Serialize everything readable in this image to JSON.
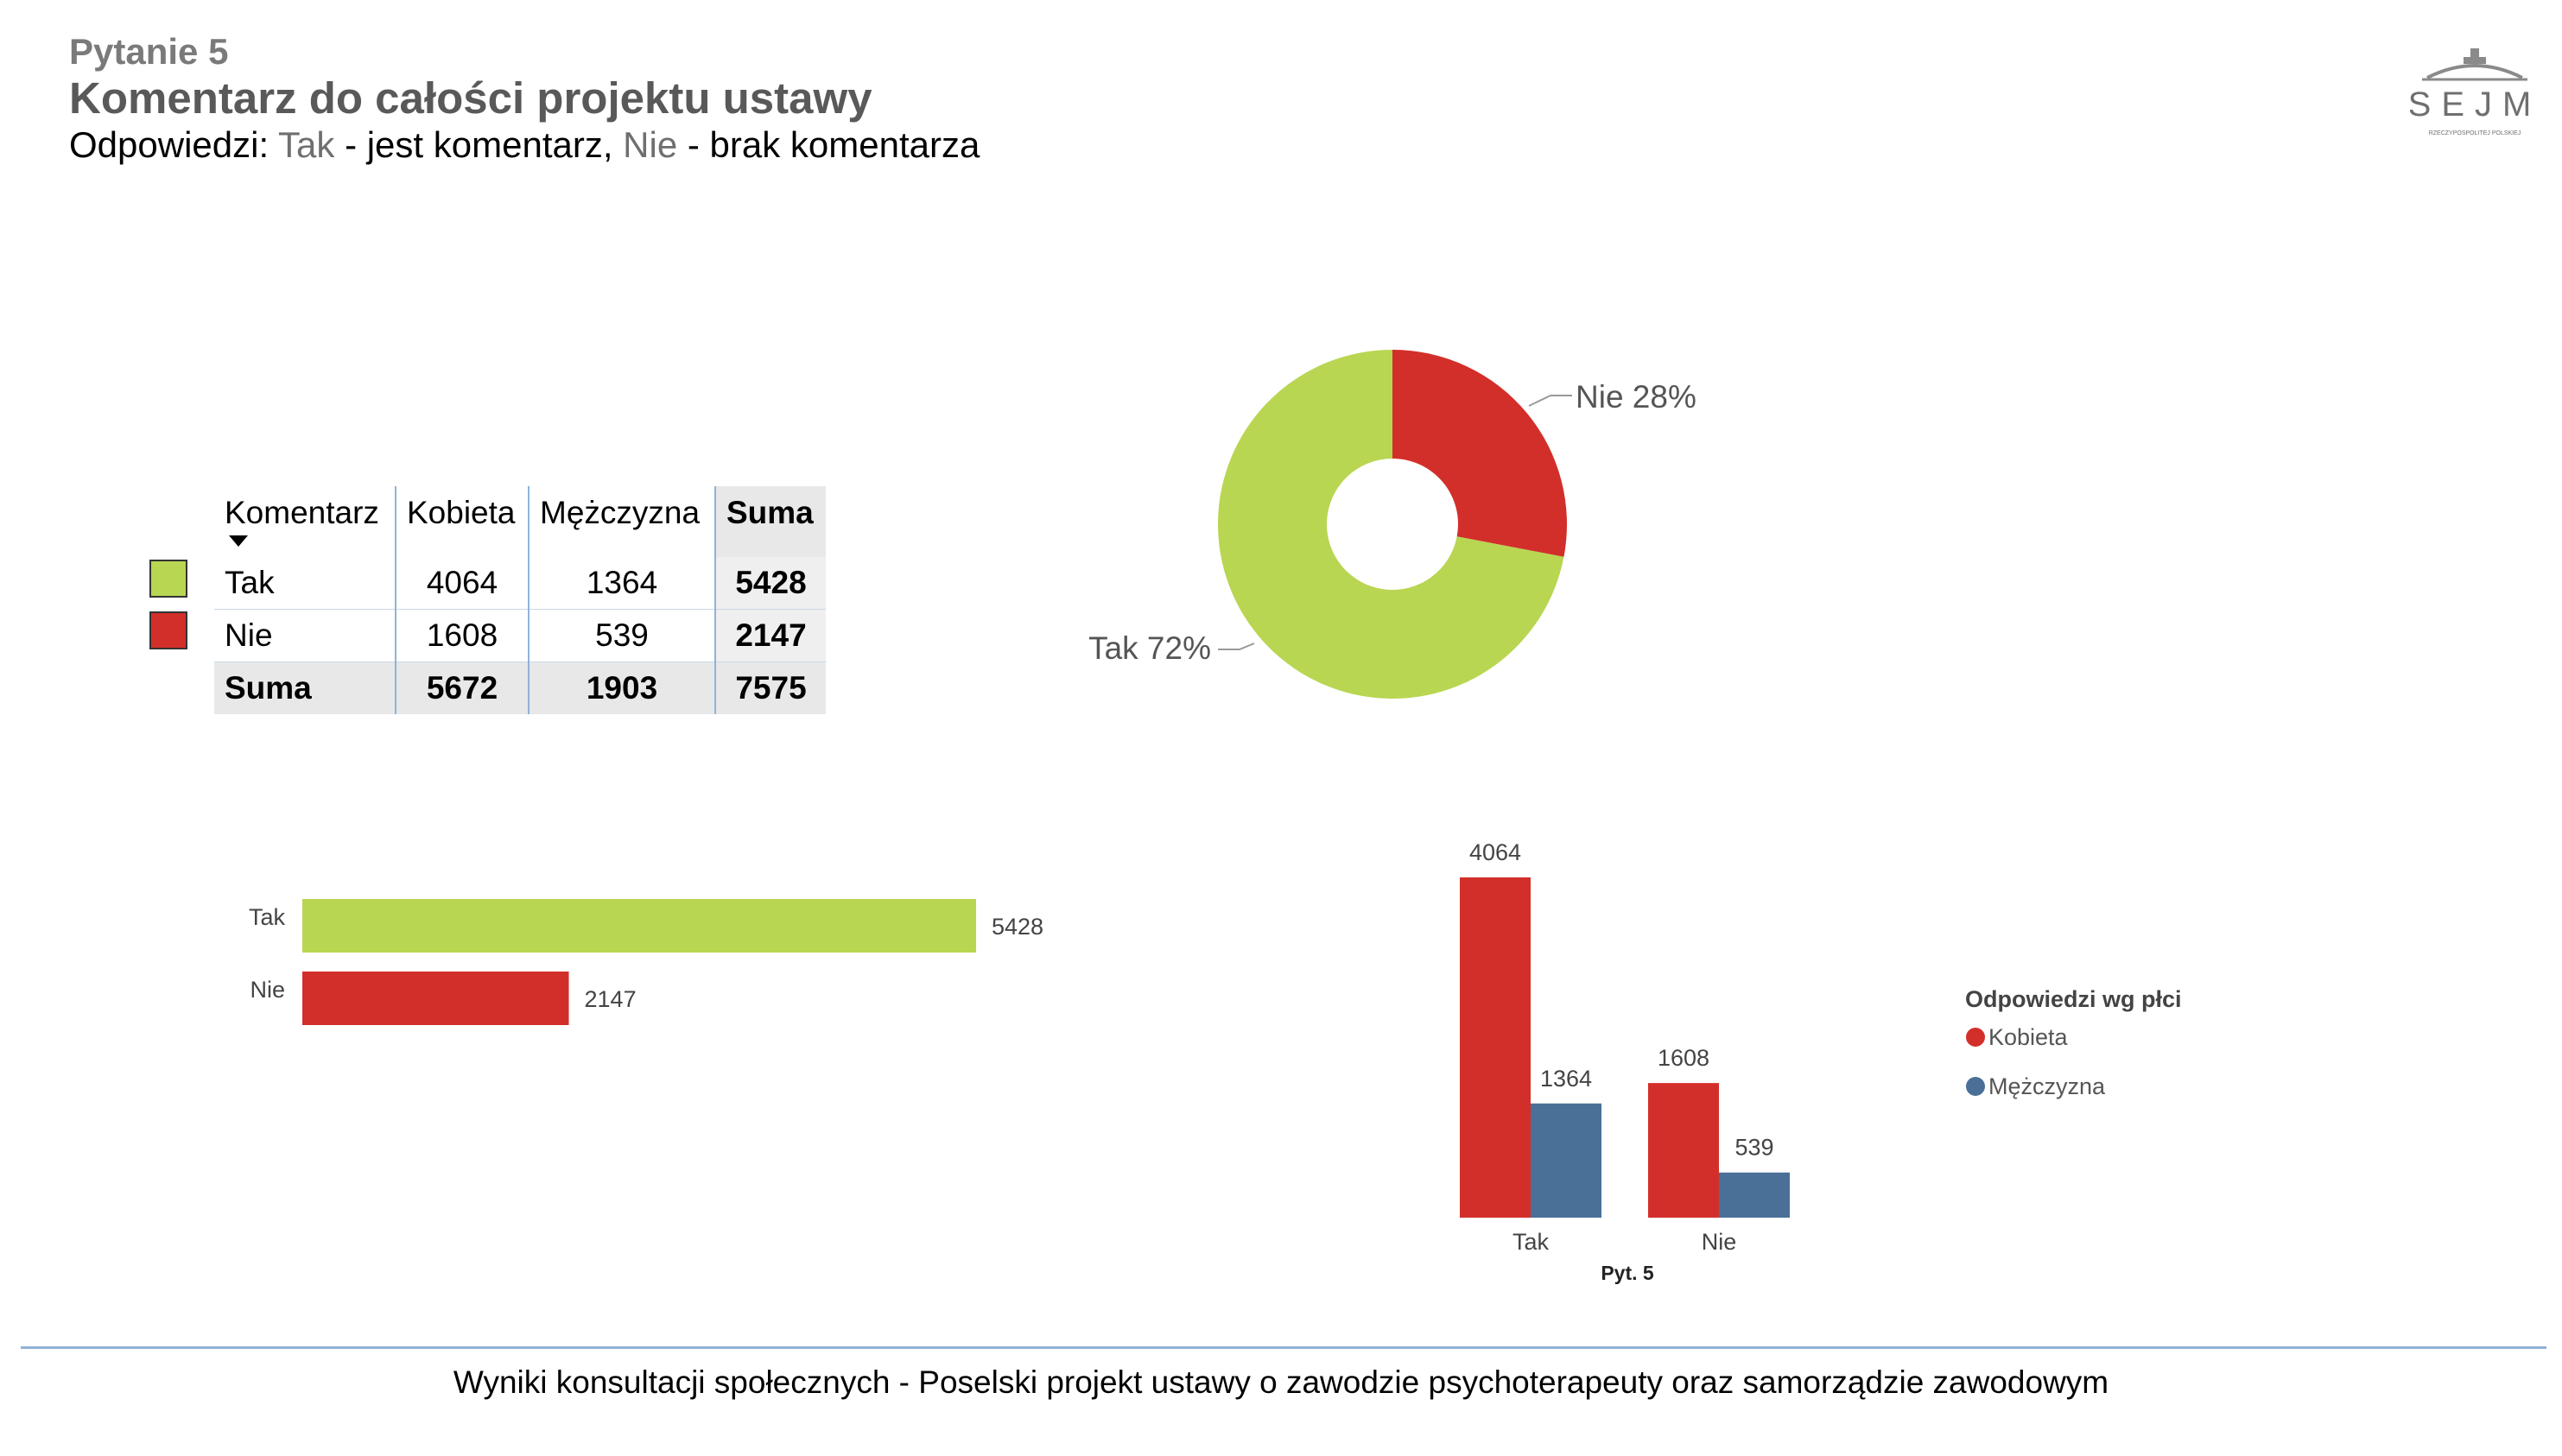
{
  "header": {
    "question_number": "Pytanie 5",
    "title": "Komentarz do całości projektu ustawy",
    "subtitle_prefix": "Odpowiedzi: ",
    "subtitle_tak": "Tak",
    "subtitle_mid": " - jest komentarz, ",
    "subtitle_nie": "Nie",
    "subtitle_suffix": " - brak komentarza"
  },
  "logo": {
    "text": "SEJM",
    "subtext": "RZECZYPOSPOLITEJ POLSKIEJ"
  },
  "table": {
    "headers": [
      "Komentarz",
      "Kobieta",
      "Mężczyzna",
      "Suma"
    ],
    "rows": [
      {
        "label": "Tak",
        "kobieta": "4064",
        "mezczyzna": "1364",
        "suma": "5428",
        "color": "#b8d652"
      },
      {
        "label": "Nie",
        "kobieta": "1608",
        "mezczyzna": "539",
        "suma": "2147",
        "color": "#d32f2a"
      }
    ],
    "total": {
      "label": "Suma",
      "kobieta": "5672",
      "mezczyzna": "1903",
      "suma": "7575"
    }
  },
  "colors": {
    "tak": "#b8d652",
    "nie": "#d32f2a",
    "kobieta": "#d32f2a",
    "mezczyzna": "#4a7098"
  },
  "chart_data": [
    {
      "type": "pie",
      "style": "donut",
      "slices": [
        {
          "label": "Nie 28%",
          "value": 28,
          "color": "#d32f2a"
        },
        {
          "label": "Tak 72%",
          "value": 72,
          "color": "#b8d652"
        }
      ]
    },
    {
      "type": "bar",
      "orientation": "horizontal",
      "categories": [
        "Tak",
        "Nie"
      ],
      "values": [
        5428,
        2147
      ],
      "colors": [
        "#b8d652",
        "#d32f2a"
      ],
      "xlim": [
        0,
        5428
      ]
    },
    {
      "type": "bar",
      "orientation": "vertical",
      "xlabel": "Pyt. 5",
      "categories": [
        "Tak",
        "Nie"
      ],
      "legend_title": "Odpowiedzi wg płci",
      "legend_position": "right",
      "ylim": [
        0,
        4064
      ],
      "series": [
        {
          "name": "Kobieta",
          "values": [
            4064,
            1608
          ],
          "color": "#d32f2a"
        },
        {
          "name": "Mężczyzna",
          "values": [
            1364,
            539
          ],
          "color": "#4a7098"
        }
      ]
    }
  ],
  "footer": "Wyniki konsultacji społecznych - Poselski projekt ustawy o zawodzie psychoterapeuty oraz samorządzie zawodowym"
}
